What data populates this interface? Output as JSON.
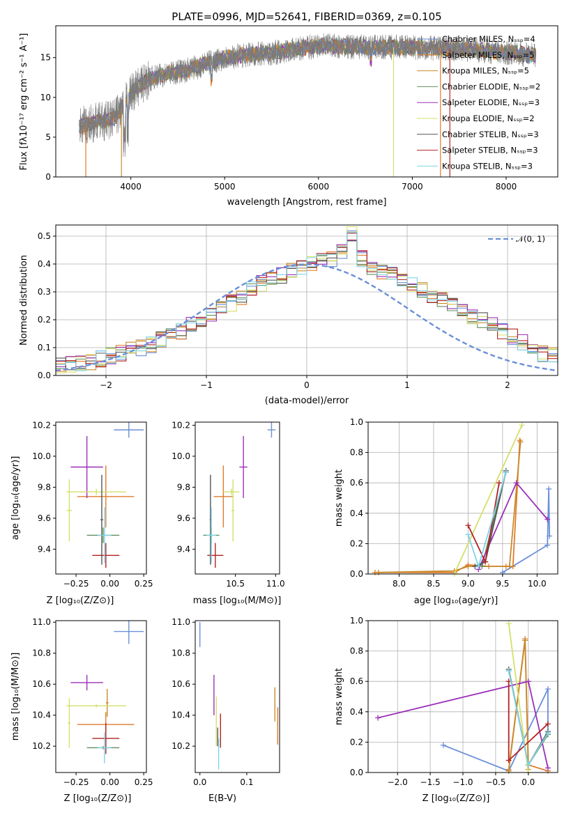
{
  "colors": {
    "chabrier_miles": "#6a8fd8",
    "salpeter_miles": "#e07b2b",
    "kroupa_miles": "#c88a2a",
    "chabrier_elodie": "#5f8f5a",
    "salpeter_elodie": "#9b2fb8",
    "kroupa_elodie": "#d4e06a",
    "chabrier_stelib": "#555555",
    "salpeter_stelib": "#b22222",
    "kroupa_stelib": "#7fd4e6",
    "gauss": "#6a8fd8",
    "spectrum": "#7a7a7a"
  },
  "chart_data": [
    {
      "id": "spectrum",
      "type": "line",
      "title": "PLATE=0996, MJD=52641, FIBERID=0369, z=0.105",
      "xlabel": "wavelength [Angstrom, rest frame]",
      "ylabel": "Flux [fλ10⁻¹⁷ erg cm⁻² s⁻¹ A⁻¹]",
      "xlim": [
        3200,
        8550
      ],
      "ylim": [
        0,
        19
      ],
      "xticks": [
        "4000",
        "5000",
        "6000",
        "7000",
        "8000"
      ],
      "yticks": [
        "0",
        "5",
        "10",
        "15"
      ],
      "grid": false,
      "legend_position": "top-right",
      "legend": [
        "Chabrier MILES, Nₛₛₚ=4",
        "Salpeter MILES, Nₛₛₚ=5",
        "Kroupa MILES, Nₛₛₚ=5",
        "Chabrier ELODIE, Nₛₛₚ=2",
        "Salpeter ELODIE, Nₛₛₚ=3",
        "Kroupa ELODIE, Nₛₛₚ=2",
        "Chabrier STELIB, Nₛₛₚ=3",
        "Salpeter STELIB, Nₛₛₚ=3",
        "Kroupa STELIB, Nₛₛₚ=3"
      ],
      "continuum": {
        "x": [
          3450,
          3600,
          3800,
          3900,
          4000,
          4100,
          4200,
          4400,
          4600,
          4800,
          5000,
          5200,
          5500,
          5800,
          6000,
          6500,
          7000,
          7500,
          8000,
          8300
        ],
        "y": [
          6.3,
          6.8,
          7.2,
          8.5,
          10.5,
          11.5,
          12.3,
          13.0,
          13.4,
          14.2,
          15.0,
          15.3,
          15.6,
          16.1,
          16.5,
          16.3,
          16.3,
          16.1,
          15.6,
          15.3
        ]
      }
    },
    {
      "id": "residuals",
      "type": "bar",
      "xlabel": "(data-model)/error",
      "ylabel": "Normed distribution",
      "xlim": [
        -2.5,
        2.5
      ],
      "ylim": [
        0,
        0.54
      ],
      "xticks": [
        "−2",
        "−1",
        "0",
        "1",
        "2"
      ],
      "yticks": [
        "0.0",
        "0.1",
        "0.2",
        "0.3",
        "0.4",
        "0.5"
      ],
      "grid": true,
      "legend_position": "top-right",
      "legend": [
        "𝒩(0, 1)"
      ],
      "bin_edges_start": -2.6,
      "bin_width": 0.1,
      "hist_ref": [
        0.03,
        0.035,
        0.04,
        0.045,
        0.05,
        0.06,
        0.07,
        0.08,
        0.09,
        0.1,
        0.11,
        0.13,
        0.15,
        0.16,
        0.18,
        0.2,
        0.22,
        0.24,
        0.26,
        0.28,
        0.31,
        0.33,
        0.35,
        0.36,
        0.38,
        0.39,
        0.4,
        0.41,
        0.42,
        0.44,
        0.51,
        0.42,
        0.38,
        0.37,
        0.36,
        0.35,
        0.33,
        0.31,
        0.29,
        0.27,
        0.25,
        0.23,
        0.21,
        0.2,
        0.18,
        0.16,
        0.14,
        0.12,
        0.1,
        0.08,
        0.07,
        0.06,
        0.05,
        0.04,
        0.035
      ]
    },
    {
      "id": "age-vs-Z",
      "type": "scatter",
      "xlabel": "Z [log₁₀(Z/Z⊙)]",
      "ylabel": "age  [log₁₀(age/yr)]",
      "xlim": [
        -0.4,
        0.27
      ],
      "ylim": [
        9.24,
        10.22
      ],
      "xticks": [
        "−0.25",
        "0.00",
        "0.25"
      ],
      "yticks": [
        "9.4",
        "9.6",
        "9.8",
        "10.0",
        "10.2"
      ],
      "points": [
        {
          "model": "chabrier_miles",
          "x": 0.14,
          "y": 10.17,
          "xerr": 0.11,
          "yerr": 0.05
        },
        {
          "model": "salpeter_miles",
          "x": -0.03,
          "y": 9.74,
          "xerr": 0.21,
          "yerr": 0.2
        },
        {
          "model": "chabrier_elodie",
          "x": -0.05,
          "y": 9.49,
          "xerr": 0.12,
          "yerr": 0.05
        },
        {
          "model": "salpeter_elodie",
          "x": -0.17,
          "y": 9.93,
          "xerr": 0.12,
          "yerr": 0.2
        },
        {
          "model": "kroupa_elodie",
          "x": -0.3,
          "y": 9.65,
          "xerr": 0.02,
          "yerr": 0.2
        },
        {
          "model": "kroupa_elodie",
          "x": -0.1,
          "y": 9.77,
          "xerr": 0.22,
          "yerr": 0.02
        },
        {
          "model": "chabrier_stelib",
          "x": -0.06,
          "y": 9.59,
          "xerr": 0.01,
          "yerr": 0.29
        },
        {
          "model": "salpeter_stelib",
          "x": -0.03,
          "y": 9.36,
          "xerr": 0.1,
          "yerr": 0.08
        },
        {
          "model": "kroupa_stelib",
          "x": -0.04,
          "y": 9.49,
          "xerr": 0.05,
          "yerr": 0.18
        }
      ]
    },
    {
      "id": "age-vs-mass",
      "type": "scatter",
      "xlabel": "mass [log₁₀(M/M⊙)]",
      "ylabel": "",
      "xlim": [
        10.0,
        11.05
      ],
      "ylim": [
        9.24,
        10.22
      ],
      "xticks": [
        "10.5",
        "11.0"
      ],
      "yticks": [
        "9.4",
        "9.6",
        "9.8",
        "10.0",
        "10.2"
      ],
      "points": [
        {
          "model": "chabrier_miles",
          "x": 10.95,
          "y": 10.17,
          "xerr": 0.05,
          "yerr": 0.05
        },
        {
          "model": "salpeter_miles",
          "x": 10.35,
          "y": 9.74,
          "xerr": 0.12,
          "yerr": 0.2
        },
        {
          "model": "chabrier_elodie",
          "x": 10.2,
          "y": 9.49,
          "xerr": 0.1,
          "yerr": 0.05
        },
        {
          "model": "salpeter_elodie",
          "x": 10.6,
          "y": 9.93,
          "xerr": 0.05,
          "yerr": 0.2
        },
        {
          "model": "kroupa_elodie",
          "x": 10.47,
          "y": 9.65,
          "xerr": 0.02,
          "yerr": 0.2
        },
        {
          "model": "kroupa_elodie",
          "x": 10.45,
          "y": 9.77,
          "xerr": 0.1,
          "yerr": 0.02
        },
        {
          "model": "chabrier_stelib",
          "x": 10.19,
          "y": 9.59,
          "xerr": 0.01,
          "yerr": 0.29
        },
        {
          "model": "salpeter_stelib",
          "x": 10.25,
          "y": 9.36,
          "xerr": 0.1,
          "yerr": 0.08
        },
        {
          "model": "kroupa_stelib",
          "x": 10.2,
          "y": 9.49,
          "xerr": 0.06,
          "yerr": 0.18
        }
      ]
    },
    {
      "id": "weight-vs-age",
      "type": "line",
      "xlabel": "age  [log₁₀(age/yr)]",
      "ylabel": "mass weight",
      "xlim": [
        7.55,
        10.3
      ],
      "ylim": [
        0,
        1.0
      ],
      "xticks": [
        "8.0",
        "8.5",
        "9.0",
        "9.5",
        "10.0"
      ],
      "yticks": [
        "0.0",
        "0.2",
        "0.4",
        "0.6",
        "0.8",
        "1.0"
      ],
      "grid": true,
      "series": [
        {
          "model": "chabrier_miles",
          "x": [
            9.5,
            10.15,
            10.17,
            10.18
          ],
          "y": [
            0.01,
            0.19,
            0.56,
            0.25
          ]
        },
        {
          "model": "salpeter_miles",
          "x": [
            7.65,
            8.8,
            9.0,
            9.3,
            9.55,
            9.65,
            9.75
          ],
          "y": [
            0.01,
            0.01,
            0.06,
            0.05,
            0.05,
            0.05,
            0.88
          ]
        },
        {
          "model": "kroupa_miles",
          "x": [
            7.7,
            8.8,
            9.0,
            9.6,
            9.76
          ],
          "y": [
            0.01,
            0.02,
            0.05,
            0.05,
            0.87
          ]
        },
        {
          "model": "chabrier_elodie",
          "x": [
            9.2,
            9.55
          ],
          "y": [
            0.05,
            0.67
          ]
        },
        {
          "model": "salpeter_elodie",
          "x": [
            9.15,
            9.7,
            10.15
          ],
          "y": [
            0.03,
            0.6,
            0.36
          ]
        },
        {
          "model": "kroupa_elodie",
          "x": [
            8.8,
            9.78
          ],
          "y": [
            0.0,
            0.98
          ]
        },
        {
          "model": "chabrier_stelib",
          "x": [
            9.1,
            9.25,
            9.55
          ],
          "y": [
            0.05,
            0.08,
            0.68
          ]
        },
        {
          "model": "salpeter_stelib",
          "x": [
            9.0,
            9.25,
            9.45
          ],
          "y": [
            0.32,
            0.08,
            0.6
          ]
        },
        {
          "model": "kroupa_stelib",
          "x": [
            9.0,
            9.15,
            9.55
          ],
          "y": [
            0.26,
            0.05,
            0.67
          ]
        }
      ]
    },
    {
      "id": "mass-vs-Z",
      "type": "scatter",
      "xlabel": "Z [log₁₀(Z/Z⊙)]",
      "ylabel": "mass [log₁₀(M/M⊙)]",
      "xlim": [
        -0.4,
        0.27
      ],
      "ylim": [
        10.03,
        11.01
      ],
      "xticks": [
        "−0.25",
        "0.00",
        "0.25"
      ],
      "yticks": [
        "10.2",
        "10.4",
        "10.6",
        "10.8",
        "11.0"
      ],
      "points": [
        {
          "model": "chabrier_miles",
          "x": 0.14,
          "y": 10.94,
          "xerr": 0.11,
          "yerr": 0.08
        },
        {
          "model": "salpeter_miles",
          "x": -0.03,
          "y": 10.34,
          "xerr": 0.21,
          "yerr": 0.08
        },
        {
          "model": "kroupa_miles",
          "x": -0.02,
          "y": 10.48,
          "xerr": 0.01,
          "yerr": 0.09
        },
        {
          "model": "chabrier_elodie",
          "x": -0.05,
          "y": 10.19,
          "xerr": 0.12,
          "yerr": 0.01
        },
        {
          "model": "salpeter_elodie",
          "x": -0.17,
          "y": 10.61,
          "xerr": 0.12,
          "yerr": 0.05
        },
        {
          "model": "kroupa_elodie",
          "x": -0.3,
          "y": 10.35,
          "xerr": 0.01,
          "yerr": 0.16
        },
        {
          "model": "kroupa_elodie",
          "x": -0.1,
          "y": 10.46,
          "xerr": 0.22,
          "yerr": 0.01
        },
        {
          "model": "salpeter_stelib",
          "x": -0.03,
          "y": 10.25,
          "xerr": 0.1,
          "yerr": 0.1
        },
        {
          "model": "kroupa_stelib",
          "x": -0.04,
          "y": 10.19,
          "xerr": 0.05,
          "yerr": 0.1
        }
      ]
    },
    {
      "id": "mass-vs-ebv",
      "type": "scatter",
      "xlabel": "E(B-V)",
      "ylabel": "",
      "xlim": [
        -0.01,
        0.17
      ],
      "ylim": [
        10.03,
        11.01
      ],
      "xticks": [
        "0.0",
        "0.1"
      ],
      "yticks": [
        "10.2",
        "10.4",
        "10.6",
        "10.8",
        "11.0"
      ],
      "points": [
        {
          "model": "chabrier_miles",
          "x": 0.0,
          "y": 10.92,
          "xerr": 0.0,
          "yerr": 0.08
        },
        {
          "model": "salpeter_miles",
          "x": 0.166,
          "y": 10.33,
          "xerr": 0.0,
          "yerr": 0.12
        },
        {
          "model": "salpeter_elodie",
          "x": 0.03,
          "y": 10.53,
          "xerr": 0.0,
          "yerr": 0.13
        },
        {
          "model": "kroupa_elodie",
          "x": 0.035,
          "y": 10.36,
          "xerr": 0.0,
          "yerr": 0.16
        },
        {
          "model": "chabrier_stelib",
          "x": 0.038,
          "y": 10.26,
          "xerr": 0.0,
          "yerr": 0.06
        },
        {
          "model": "salpeter_stelib",
          "x": 0.044,
          "y": 10.3,
          "xerr": 0.0,
          "yerr": 0.11
        },
        {
          "model": "kroupa_stelib",
          "x": 0.04,
          "y": 10.15,
          "xerr": 0.0,
          "yerr": 0.1
        },
        {
          "model": "kroupa_miles",
          "x": 0.16,
          "y": 10.47,
          "xerr": 0.0,
          "yerr": 0.11
        }
      ]
    },
    {
      "id": "weight-vs-Z",
      "type": "line",
      "xlabel": "Z [log₁₀(Z/Z⊙)]",
      "ylabel": "mass weight",
      "xlim": [
        -2.45,
        0.45
      ],
      "ylim": [
        0,
        1.0
      ],
      "xticks": [
        "−2.0",
        "−1.5",
        "−1.0",
        "−0.5",
        "0.0"
      ],
      "yticks": [
        "0.0",
        "0.2",
        "0.4",
        "0.6",
        "0.8",
        "1.0"
      ],
      "grid": true,
      "series": [
        {
          "model": "chabrier_miles",
          "x": [
            -1.3,
            -0.3,
            0.3,
            0.3
          ],
          "y": [
            0.18,
            0.01,
            0.55,
            0.26
          ]
        },
        {
          "model": "salpeter_miles",
          "x": [
            -0.3,
            -0.05,
            0.0,
            0.3
          ],
          "y": [
            0.02,
            0.88,
            0.05,
            0.01
          ]
        },
        {
          "model": "kroupa_miles",
          "x": [
            -0.3,
            -0.05,
            0.0
          ],
          "y": [
            0.01,
            0.87,
            0.02
          ]
        },
        {
          "model": "chabrier_elodie",
          "x": [
            -0.3,
            0.0,
            0.3
          ],
          "y": [
            0.67,
            0.05,
            0.25
          ]
        },
        {
          "model": "salpeter_elodie",
          "x": [
            -2.3,
            0.0,
            0.3
          ],
          "y": [
            0.36,
            0.6,
            0.03
          ]
        },
        {
          "model": "kroupa_elodie",
          "x": [
            -0.3,
            0.0
          ],
          "y": [
            0.98,
            0.0
          ]
        },
        {
          "model": "chabrier_stelib",
          "x": [
            -0.3,
            0.0,
            0.3
          ],
          "y": [
            0.68,
            0.05,
            0.27
          ]
        },
        {
          "model": "salpeter_stelib",
          "x": [
            -0.3,
            -0.3,
            0.3
          ],
          "y": [
            0.6,
            0.08,
            0.32
          ]
        },
        {
          "model": "kroupa_stelib",
          "x": [
            -0.3,
            0.0,
            0.3
          ],
          "y": [
            0.67,
            0.05,
            0.26
          ]
        }
      ]
    }
  ]
}
